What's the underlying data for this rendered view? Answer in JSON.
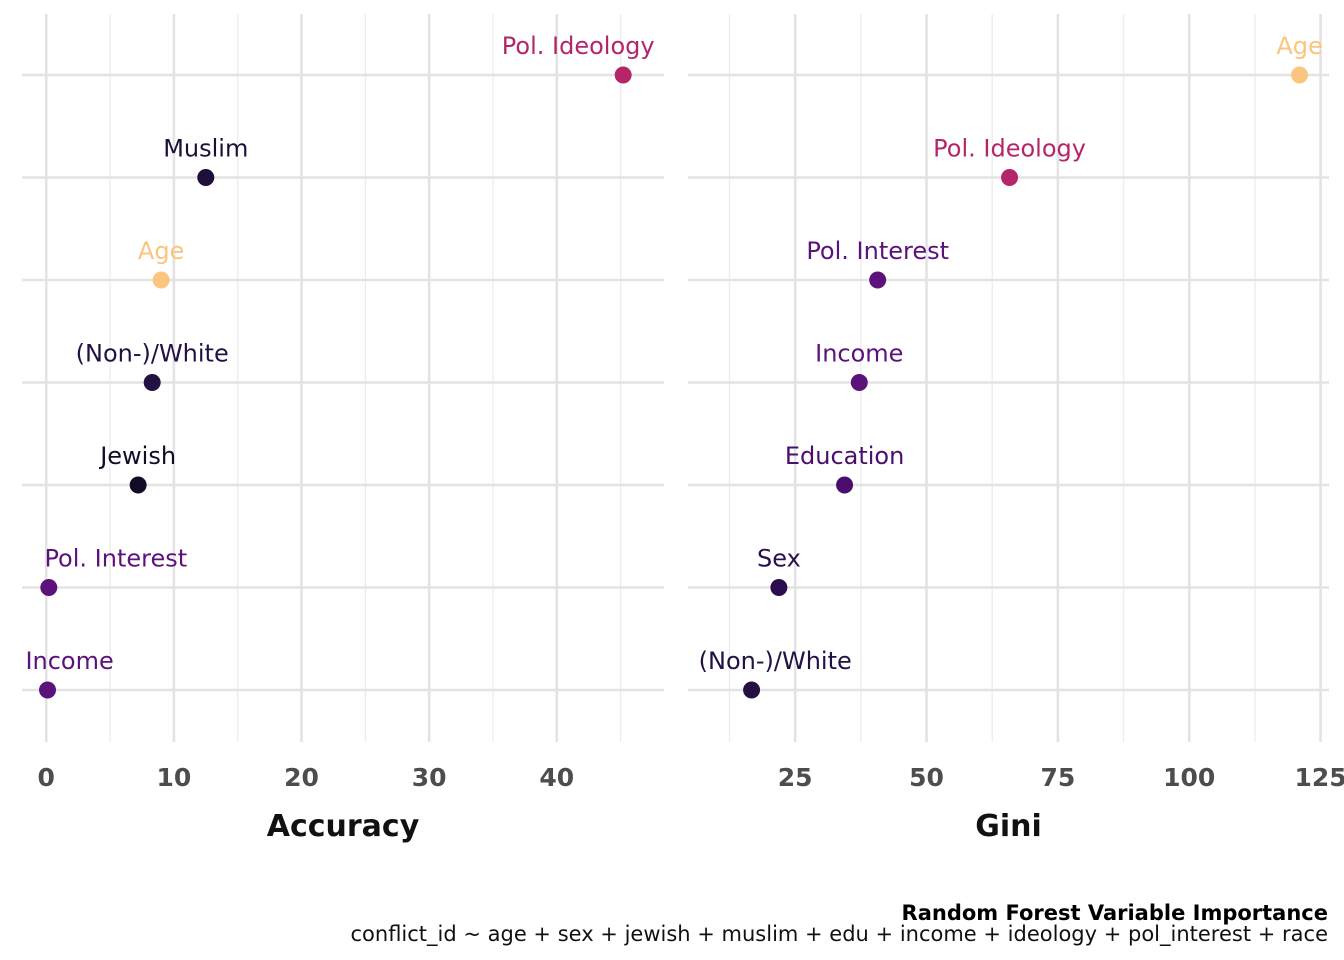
{
  "caption": {
    "title": "Random Forest Variable Importance",
    "subtitle": "conflict_id ~ age + sex + jewish + muslim + edu + income + ideology + pol_interest + race"
  },
  "chart_data": [
    {
      "type": "scatter",
      "xlabel": "Accuracy",
      "xlim": [
        -1.9,
        48.4
      ],
      "x_ticks": [
        "0",
        "10",
        "20",
        "30",
        "40"
      ],
      "grid": true,
      "points": [
        {
          "label": "Pol. Ideology",
          "value": 45.2,
          "color": "#b5256a"
        },
        {
          "label": "Muslim",
          "value": 12.5,
          "color": "#1d0f37"
        },
        {
          "label": "Age",
          "value": 9.0,
          "color": "#fbc57f"
        },
        {
          "label": "(Non-)/White",
          "value": 8.3,
          "color": "#231144"
        },
        {
          "label": "Jewish",
          "value": 7.2,
          "color": "#130b28"
        },
        {
          "label": "Pol. Interest",
          "value": 0.2,
          "color": "#5c127a"
        },
        {
          "label": "Income",
          "value": 0.1,
          "color": "#5a137b"
        }
      ]
    },
    {
      "type": "scatter",
      "xlabel": "Gini",
      "xlim": [
        4.6,
        126.6
      ],
      "x_ticks": [
        "25",
        "50",
        "75",
        "100",
        "125"
      ],
      "grid": true,
      "points": [
        {
          "label": "Age",
          "value": 121.0,
          "color": "#fbc57f"
        },
        {
          "label": "Pol. Ideology",
          "value": 65.8,
          "color": "#b5256a"
        },
        {
          "label": "Pol. Interest",
          "value": 40.7,
          "color": "#5c127a"
        },
        {
          "label": "Income",
          "value": 37.2,
          "color": "#5a137b"
        },
        {
          "label": "Education",
          "value": 34.4,
          "color": "#4c0e6e"
        },
        {
          "label": "Sex",
          "value": 21.9,
          "color": "#2a0e4d"
        },
        {
          "label": "(Non-)/White",
          "value": 16.7,
          "color": "#231144"
        }
      ]
    }
  ]
}
